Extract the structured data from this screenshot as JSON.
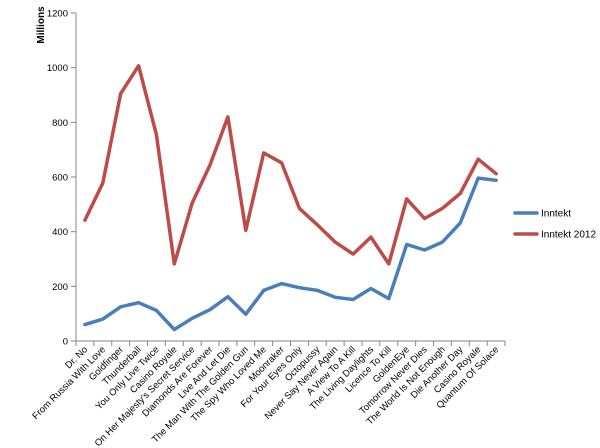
{
  "chart_data": {
    "type": "line",
    "title": "",
    "xlabel": "",
    "ylabel": "Millions",
    "ylim": [
      0,
      1200
    ],
    "yticks": [
      0,
      200,
      400,
      600,
      800,
      1000,
      1200
    ],
    "grid": false,
    "legend_position": "right",
    "categories": [
      "Dr. No",
      "From Russia With Love",
      "Goldfinger",
      "Thunderball",
      "You Only Live Twice",
      "Casino Royale",
      "On Her Majesty's Secret Service",
      "Diamonds Are Forever",
      "Live And Let Die",
      "The Man With The Golden Gun",
      "The Spy Who Loved Me",
      "Moonraker",
      "For Your Eyes Only",
      "Octopussy",
      "Never Say Never Again",
      "A View To A Kill",
      "The Living Daylights",
      "Licence To Kill",
      "GoldenEye",
      "Tomorrow Never Dies",
      "The World Is Not Enough",
      "Die Another Day",
      "Casino Royale",
      "Quantum Of Solace"
    ],
    "series": [
      {
        "name": "Inntekt",
        "color": "#4a7ebb",
        "values": [
          60,
          80,
          125,
          140,
          112,
          42,
          83,
          115,
          162,
          98,
          185,
          210,
          195,
          185,
          160,
          152,
          192,
          155,
          353,
          333,
          362,
          432,
          596,
          588
        ]
      },
      {
        "name": "Inntekt 2012",
        "color": "#be4b48",
        "values": [
          442,
          578,
          905,
          1007,
          755,
          282,
          505,
          645,
          820,
          405,
          688,
          652,
          485,
          425,
          362,
          318,
          380,
          282,
          520,
          448,
          485,
          540,
          665,
          612
        ]
      }
    ]
  }
}
